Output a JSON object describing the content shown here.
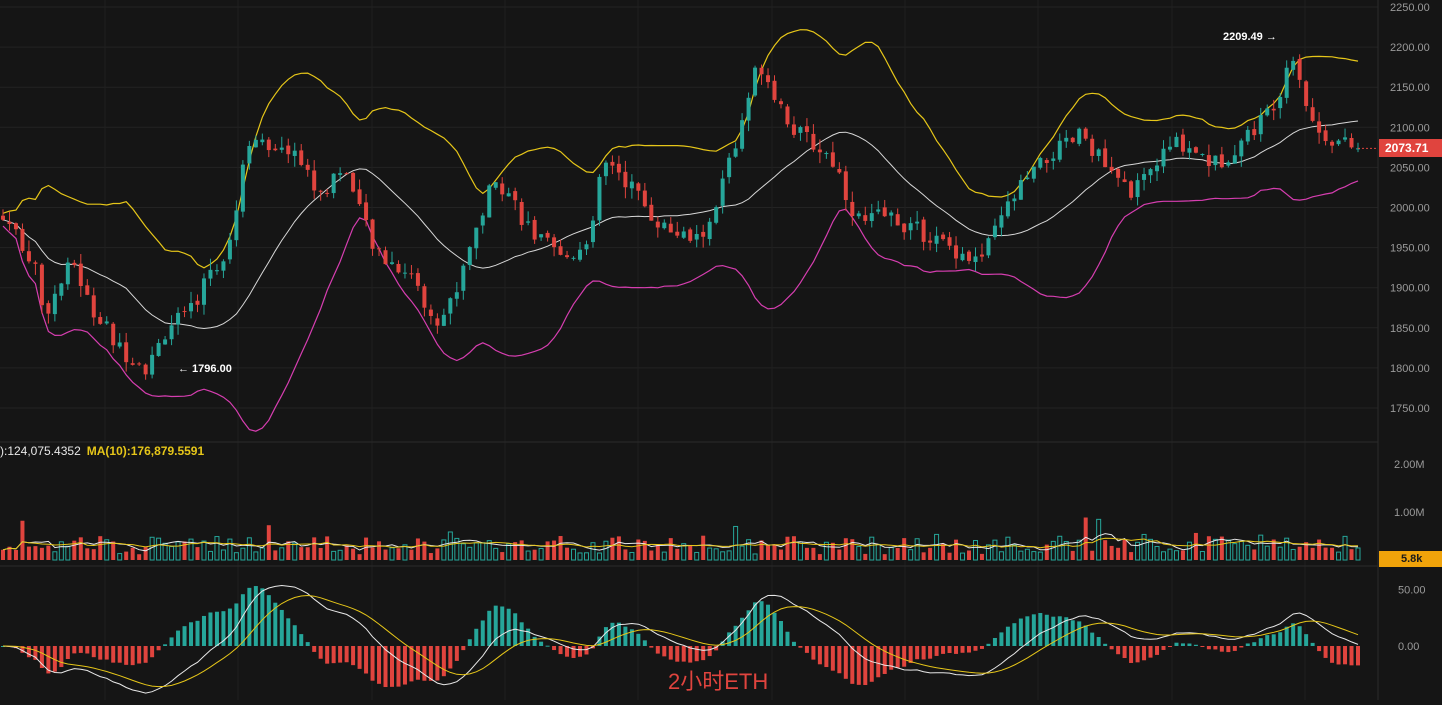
{
  "watermark": "2小时ETH",
  "last_price": "2073.71",
  "volume_last": "5.8k",
  "high_marker": "2209.49 →",
  "low_marker": "← 1796.00",
  "volume_legend": {
    "ma5": "):124,075.4352",
    "ma10": "MA(10):176,879.5591"
  },
  "colors": {
    "background": "#151515",
    "up": "#26a69a",
    "down": "#e0443e",
    "boll_upper": "#e6c619",
    "boll_mid": "#d8d8d8",
    "boll_lower": "#d63eb0",
    "last_price_tag": "#e0443e",
    "volume_tag": "#f0a30a"
  },
  "chart_data": [
    {
      "type": "candlestick",
      "name": "price",
      "ylim": [
        1730,
        2250
      ],
      "yticks": [
        "1750.00",
        "1800.00",
        "1850.00",
        "1900.00",
        "1950.00",
        "2000.00",
        "2050.00",
        "2100.00",
        "2150.00",
        "2200.00",
        "2250.00"
      ],
      "close_path": [
        1985,
        1978,
        1960,
        1945,
        1930,
        1870,
        1880,
        1900,
        1920,
        1930,
        1900,
        1875,
        1860,
        1850,
        1830,
        1820,
        1815,
        1810,
        1800,
        1815,
        1840,
        1855,
        1860,
        1860,
        1880,
        1900,
        1925,
        1930,
        1950,
        1980,
        2050,
        2090,
        2085,
        2070,
        2060,
        2070,
        2075,
        2065,
        2045,
        2030,
        2010,
        2030,
        2050,
        2040,
        2030,
        1990,
        1960,
        1940,
        1935,
        1930,
        1925,
        1915,
        1910,
        1870,
        1855,
        1860,
        1880,
        1900,
        1940,
        1965,
        1990,
        2020,
        2030,
        2025,
        2010,
        1990,
        1975,
        1960,
        1955,
        1945,
        1935,
        1940,
        1945,
        1960,
        1975,
        2040,
        2060,
        2050,
        2035,
        2025,
        2010,
        1995,
        1985,
        1975,
        1970,
        1965,
        1960,
        1960,
        1970,
        1980,
        2020,
        2060,
        2080,
        2110,
        2160,
        2180,
        2160,
        2140,
        2120,
        2100,
        2090,
        2085,
        2075,
        2070,
        2060,
        2040,
        2010,
        1990,
        1980,
        1985,
        1990,
        1990,
        1985,
        1980,
        1975,
        1970,
        1965,
        1960,
        1955,
        1950,
        1945,
        1940,
        1935,
        1940,
        1960,
        1980,
        2000,
        2015,
        2030,
        2040,
        2050,
        2060,
        2070,
        2075,
        2080,
        2090,
        2085,
        2070,
        2055,
        2040,
        2030,
        2025,
        2020,
        2030,
        2045,
        2060,
        2070,
        2080,
        2080,
        2075,
        2070,
        2060,
        2055,
        2060,
        2070,
        2080,
        2090,
        2100,
        2110,
        2125,
        2140,
        2175,
        2195,
        2150,
        2110,
        2095,
        2090,
        2085,
        2080,
        2076,
        2073.71
      ],
      "high_label": "2209.49",
      "low_label": "1796.00"
    },
    {
      "type": "bar",
      "name": "volume",
      "ylim": [
        0,
        2400000
      ],
      "yticks": [
        "1.00M",
        "2.00M"
      ],
      "ma_labels": [
        "):124,075.4352",
        "MA(10):176,879.5591"
      ],
      "last_value": "5.8k"
    },
    {
      "type": "bar",
      "name": "macd",
      "ylim": [
        -50,
        70
      ],
      "yticks": [
        "0.00",
        "50.00"
      ]
    }
  ]
}
